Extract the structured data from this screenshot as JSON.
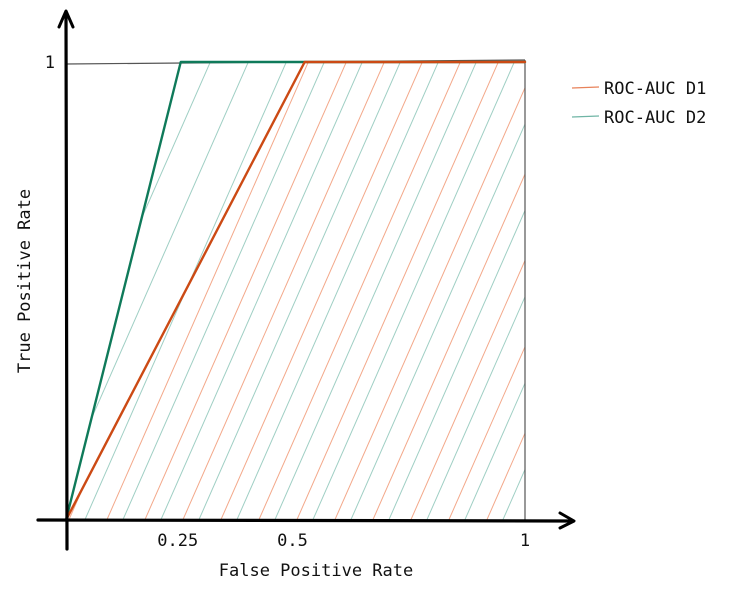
{
  "chart_data": {
    "type": "line",
    "xlabel": "False Positive Rate",
    "ylabel": "True Positive Rate",
    "xlim": [
      0,
      1
    ],
    "ylim": [
      0,
      1
    ],
    "x_ticks": [
      {
        "value": 0.25,
        "label": "0.25"
      },
      {
        "value": 0.5,
        "label": "0.5"
      },
      {
        "value": 1,
        "label": "1"
      }
    ],
    "y_ticks": [
      {
        "value": 1,
        "label": "1"
      }
    ],
    "grid": false,
    "legend_position": "top-right",
    "series": [
      {
        "name": "ROC-AUC D1",
        "color": "#cc4a14",
        "hatch_color": "#f3a88a",
        "x": [
          0,
          0.52,
          1
        ],
        "y": [
          0,
          1,
          1
        ]
      },
      {
        "name": "ROC-AUC D2",
        "color": "#0f7a5a",
        "hatch_color": "#9fcfc4",
        "x": [
          0,
          0.25,
          1
        ],
        "y": [
          0,
          1,
          1
        ]
      }
    ]
  }
}
